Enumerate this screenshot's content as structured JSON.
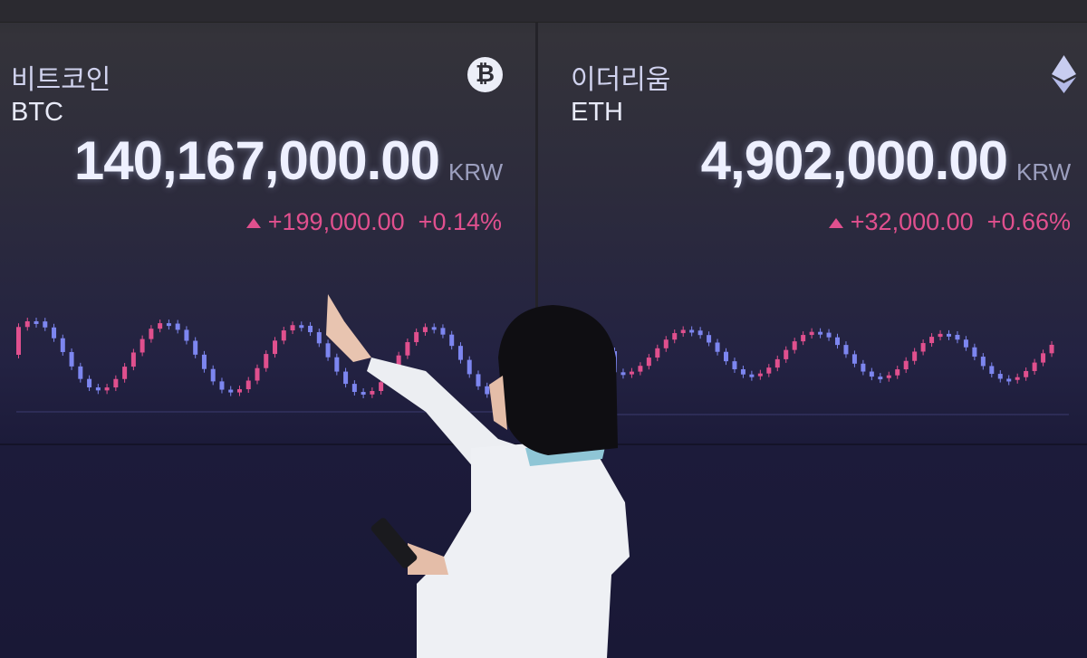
{
  "btc": {
    "name_ko": "비트코인",
    "symbol": "BTC",
    "price": "140,167,000.00",
    "currency": "KRW",
    "change": "+199,000.00",
    "change_pct": "+0.14%",
    "icon": "bitcoin-icon"
  },
  "eth": {
    "name_ko": "이더리움",
    "symbol": "ETH",
    "price": "4,902,000.00",
    "currency": "KRW",
    "change": "+32,000.00",
    "change_pct": "+0.66%",
    "icon": "ethereum-icon"
  },
  "colors": {
    "up": "#e0508e",
    "down": "#7d86f0",
    "background": "#1f1e3a"
  }
}
